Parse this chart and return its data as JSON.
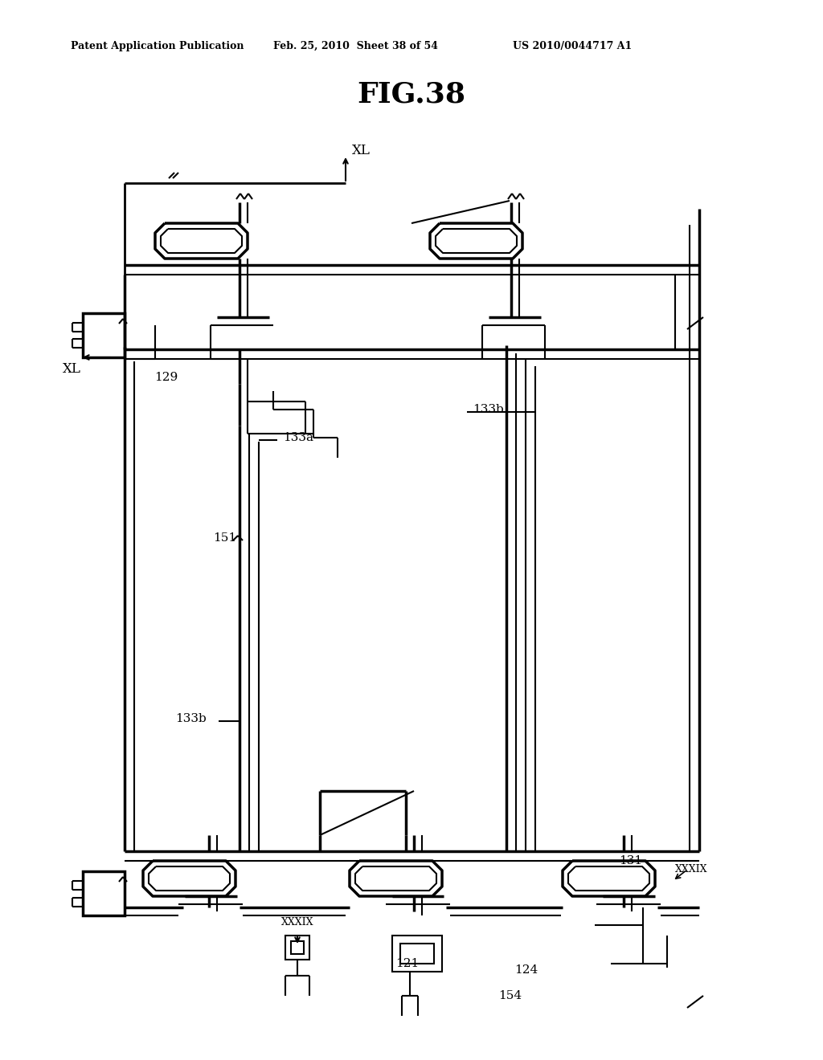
{
  "bg_color": "#ffffff",
  "line_color": "#000000",
  "header_left": "Patent Application Publication",
  "header_mid": "Feb. 25, 2010  Sheet 38 of 54",
  "header_right": "US 2010/0044717 A1",
  "title": "FIG.38"
}
